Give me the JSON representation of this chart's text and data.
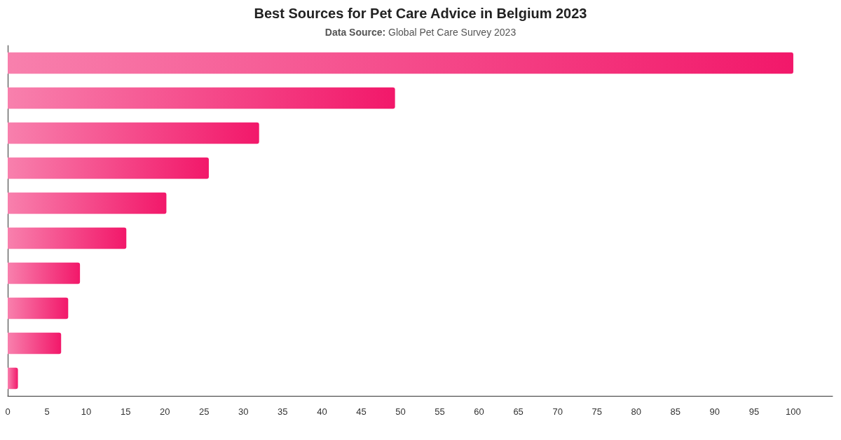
{
  "chart_data": {
    "type": "bar",
    "orientation": "horizontal",
    "title": "Best Sources for Pet Care Advice in Belgium 2023",
    "subtitle": "Data Source: Global Pet Care Survey 2023",
    "categories": [
      null,
      null,
      null,
      null,
      null,
      null,
      null,
      null,
      null,
      null
    ],
    "values": [
      100,
      49.3,
      32,
      25.6,
      20.2,
      15.1,
      9.2,
      7.7,
      6.8,
      1.3
    ],
    "color": "#f2186a",
    "xlim": [
      0,
      105
    ],
    "xticks": [
      0,
      5,
      10,
      15,
      20,
      25,
      30,
      35,
      40,
      45,
      50,
      55,
      60,
      65,
      70,
      75,
      80,
      85,
      90,
      95,
      100
    ]
  }
}
